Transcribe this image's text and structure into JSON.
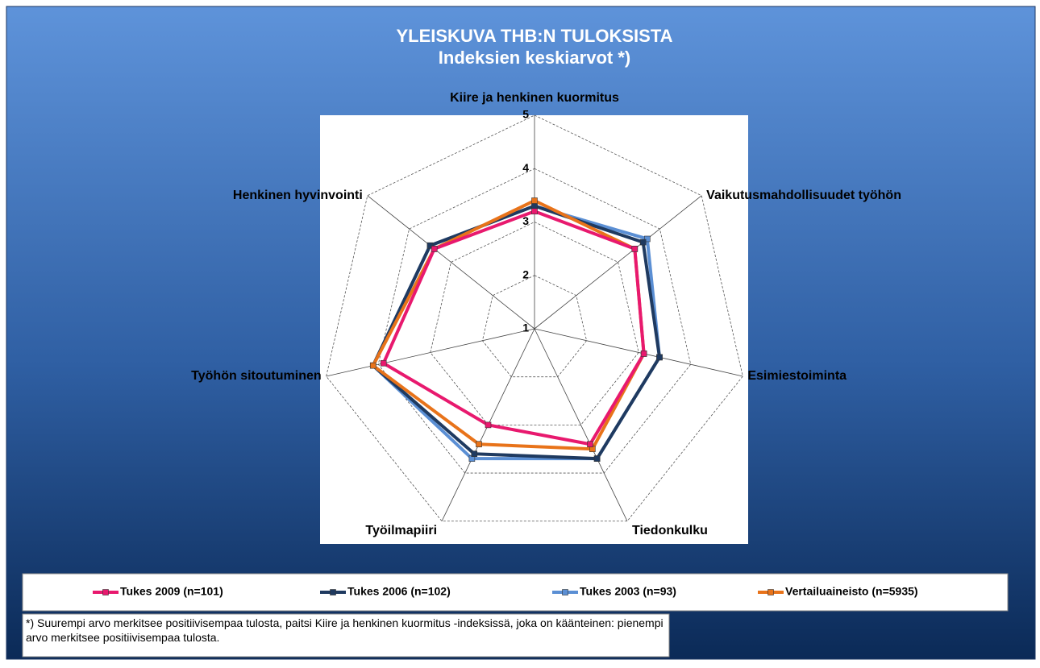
{
  "chart_data": {
    "type": "radar",
    "title": "YLEISKUVA THB:N TULOKSISTA",
    "subtitle": "Indeksien keskiarvot *)",
    "categories": [
      "Kiire ja henkinen kuormitus",
      "Vaikutusmahdollisuudet työhön",
      "Esimiestoiminta",
      "Tiedonkulku",
      "Työilmapiiri",
      "Työhön sitoutuminen",
      "Henkinen hyvinvointi"
    ],
    "series": [
      {
        "name": "Tukes 2009 (n=101)",
        "color": "#e8196e",
        "values": [
          3.2,
          3.4,
          3.1,
          3.4,
          3.0,
          3.9,
          3.4
        ]
      },
      {
        "name": "Tukes 2006 (n=102)",
        "color": "#1f3a60",
        "values": [
          3.3,
          3.6,
          3.4,
          3.7,
          3.6,
          4.1,
          3.5
        ]
      },
      {
        "name": "Tukes 2003 (n=93)",
        "color": "#5b8fd4",
        "values": [
          3.3,
          3.7,
          3.4,
          3.7,
          3.7,
          4.1,
          3.5
        ]
      },
      {
        "name": "Vertailuaineisto (n=5935)",
        "color": "#e8731a",
        "values": [
          3.4,
          3.4,
          3.1,
          3.5,
          3.4,
          4.1,
          3.4
        ]
      }
    ],
    "ylim": [
      1,
      5
    ],
    "yticks": [
      1,
      2,
      3,
      4,
      5
    ],
    "grid": true,
    "note": "*) Suurempi arvo merkitsee positiivisempaa tulosta, paitsi Kiire ja henkinen kuormitus -indeksissä, joka on käänteinen: pienempi arvo merkitsee positiivisempaa tulosta."
  }
}
